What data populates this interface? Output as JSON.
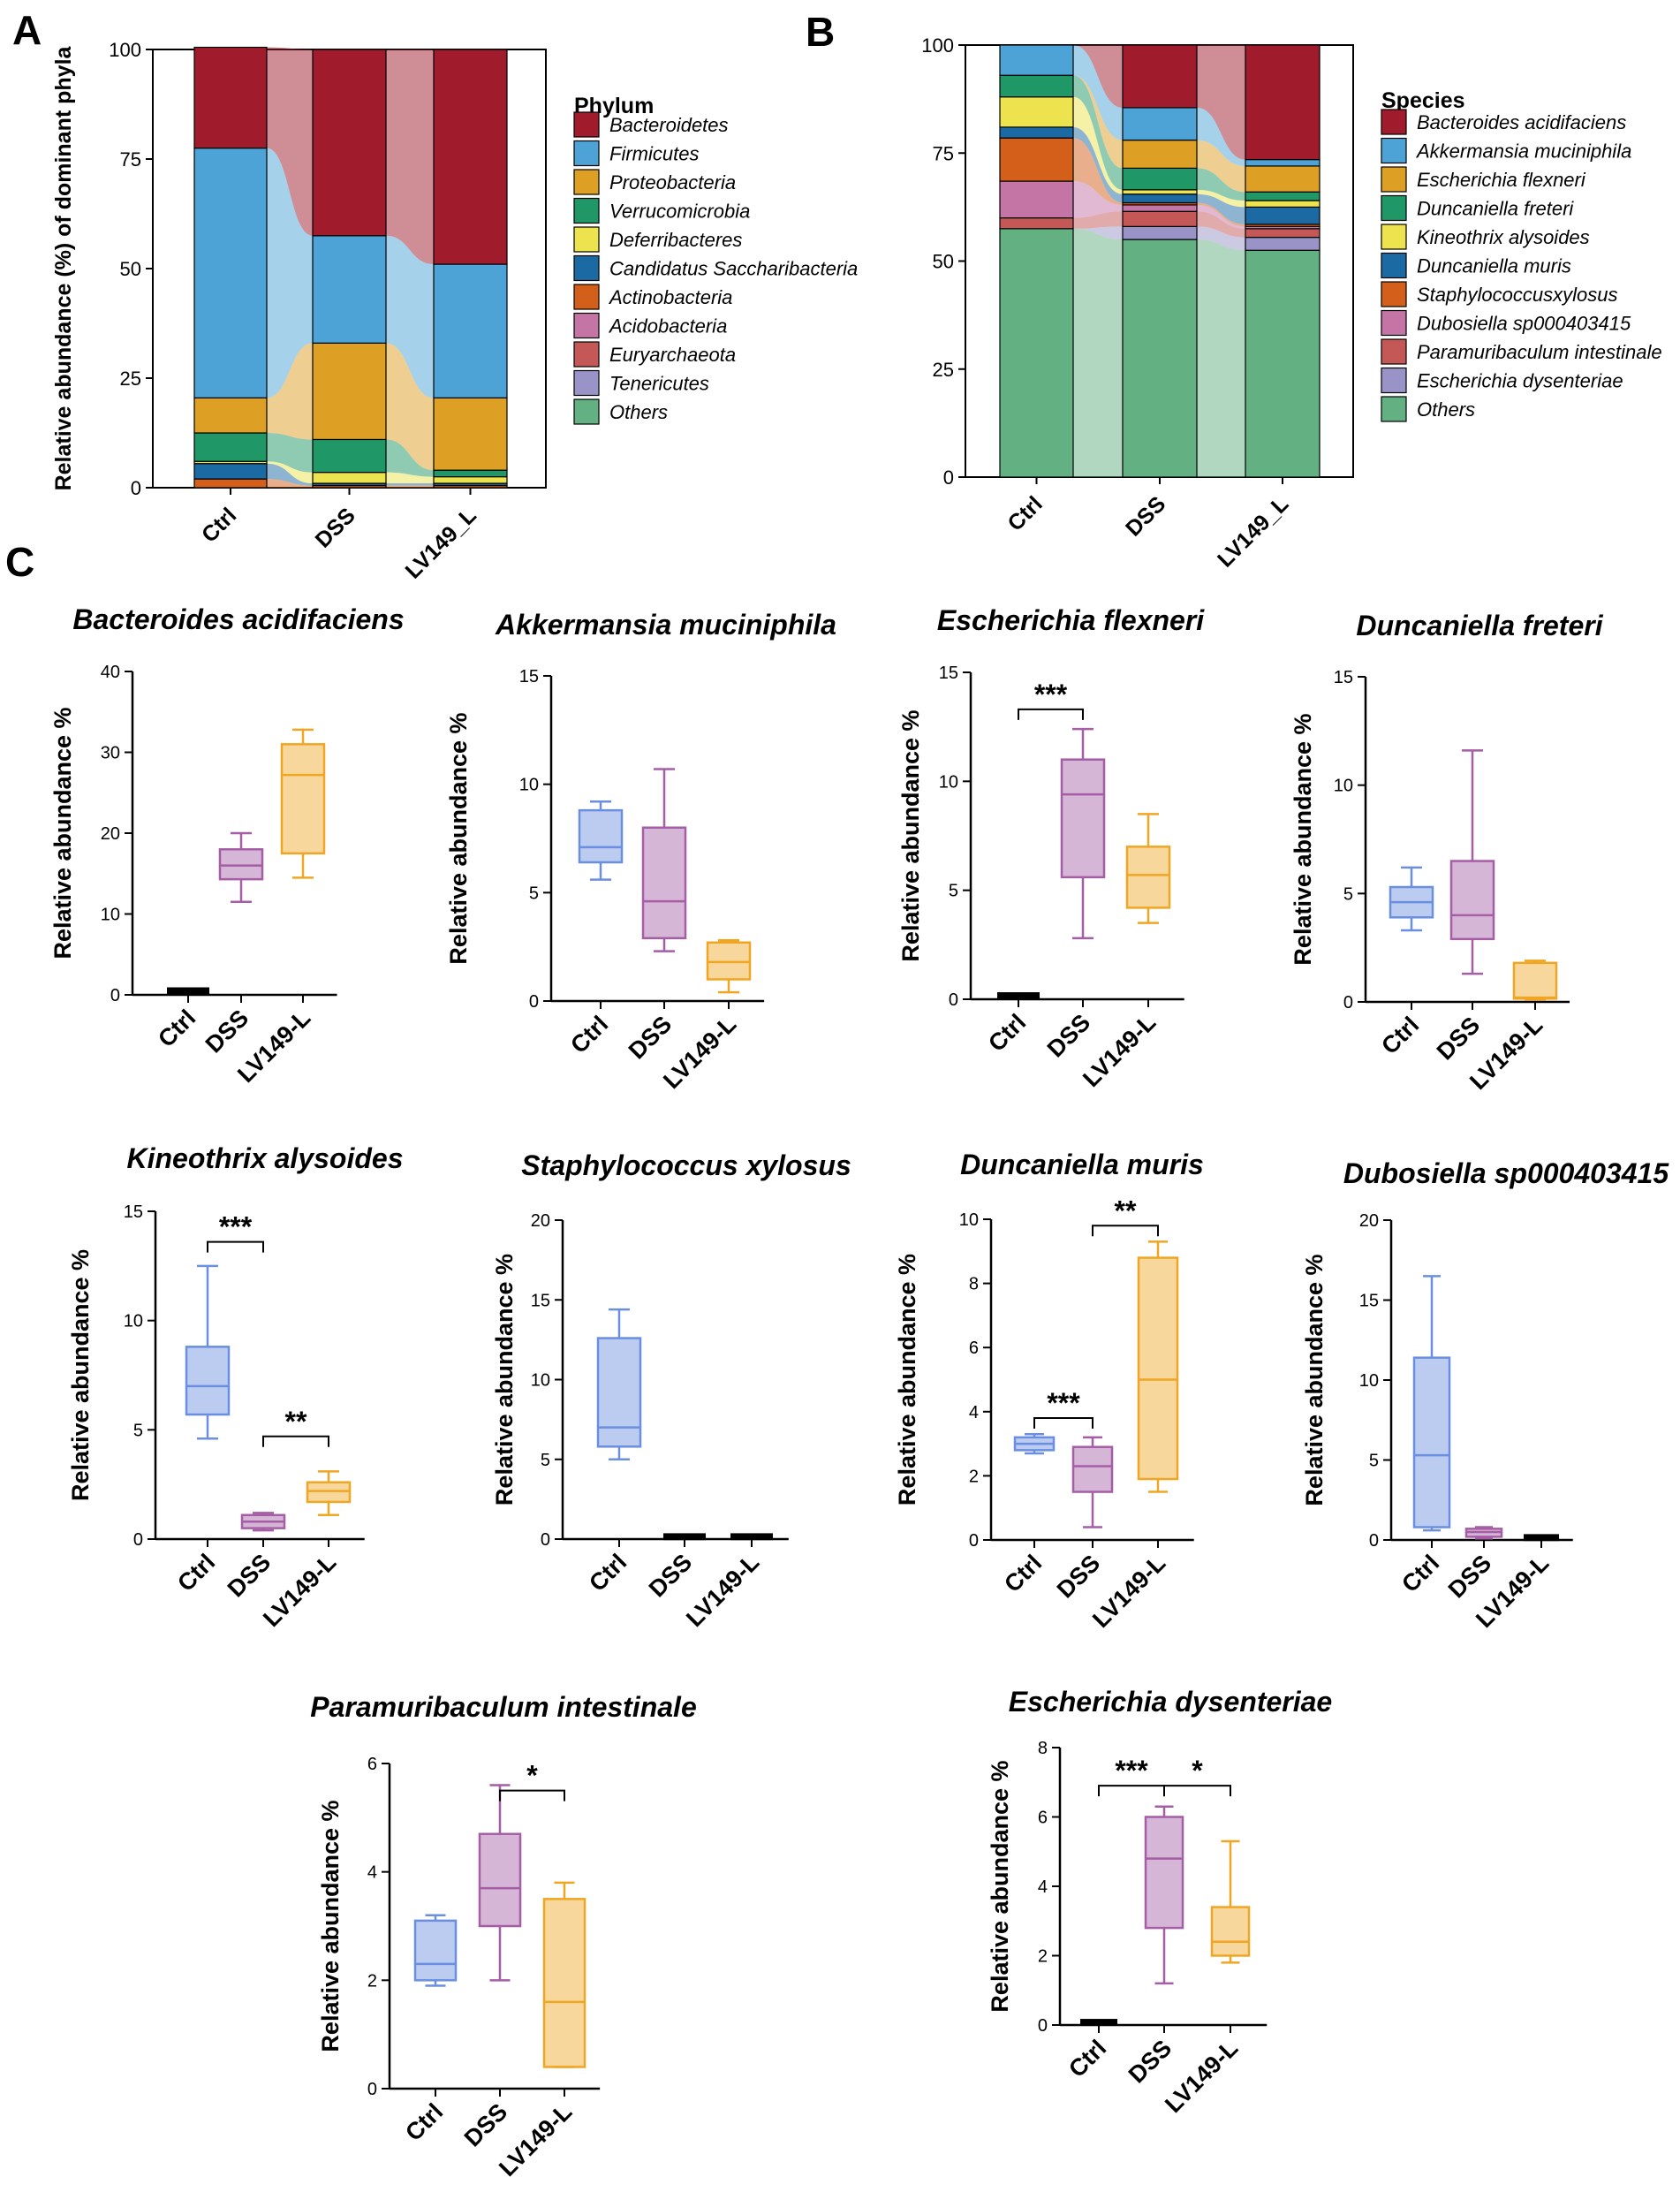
{
  "panel_letters": {
    "A": "A",
    "B": "B",
    "C": "C"
  },
  "colors": {
    "Bacteroidetes": "#a01c2c",
    "Firmicutes": "#4da3d6",
    "Proteobacteria": "#dea024",
    "Verrucomicrobia": "#1f9767",
    "Deferribacteres": "#ece34e",
    "Candidatus Saccharibacteria": "#1c6aa3",
    "Actinobacteria": "#d35f1b",
    "Acidobacteria": "#c574a6",
    "Euryarchaeota": "#c45857",
    "Tenericutes": "#9a93c8",
    "Others": "#63b083",
    "box_ctrl": "#6b8fe0",
    "box_dss": "#a55ea6",
    "box_lv": "#f0a623"
  },
  "chart_data": [
    {
      "id": "A",
      "type": "stacked-bar",
      "ylabel": "Relative abundance (%) of dominant phyla",
      "ylim": [
        0,
        100
      ],
      "yticks": [
        "0",
        "25",
        "50",
        "75",
        "100"
      ],
      "categories": [
        "Ctrl",
        "DSS",
        "LV149_L"
      ],
      "legend_title": "Phylum",
      "legend": [
        "Bacteroidetes",
        "Firmicutes",
        "Proteobacteria",
        "Verrucomicrobia",
        "Deferribacteres",
        "Candidatus Saccharibacteria",
        "Actinobacteria",
        "Acidobacteria",
        "Euryarchaeota",
        "Tenericutes",
        "Others"
      ],
      "series": [
        {
          "name": "Others",
          "color_key": "Others",
          "values": [
            0,
            0,
            0
          ]
        },
        {
          "name": "Tenericutes",
          "color_key": "Tenericutes",
          "values": [
            0,
            0,
            0
          ]
        },
        {
          "name": "Euryarchaeota",
          "color_key": "Euryarchaeota",
          "values": [
            0,
            0,
            0
          ]
        },
        {
          "name": "Acidobacteria",
          "color_key": "Acidobacteria",
          "values": [
            0,
            0,
            0
          ]
        },
        {
          "name": "Actinobacteria",
          "color_key": "Actinobacteria",
          "values": [
            2,
            0.5,
            0.5
          ]
        },
        {
          "name": "Candidatus Saccharibacteria",
          "color_key": "Candidatus Saccharibacteria",
          "values": [
            3.5,
            0.5,
            0.5
          ]
        },
        {
          "name": "Deferribacteres",
          "color_key": "Deferribacteres",
          "values": [
            0.5,
            2.5,
            1.5
          ]
        },
        {
          "name": "Verrucomicrobia",
          "color_key": "Verrucomicrobia",
          "values": [
            6.5,
            7.5,
            1.5
          ]
        },
        {
          "name": "Proteobacteria",
          "color_key": "Proteobacteria",
          "values": [
            8,
            22,
            16.5
          ]
        },
        {
          "name": "Firmicutes",
          "color_key": "Firmicutes",
          "values": [
            57,
            24.5,
            30.5
          ]
        },
        {
          "name": "Bacteroidetes",
          "color_key": "Bacteroidetes",
          "values": [
            23,
            42.5,
            49
          ]
        }
      ]
    },
    {
      "id": "B",
      "type": "stacked-bar",
      "ylabel": "",
      "ylim": [
        0,
        100
      ],
      "yticks": [
        "0",
        "25",
        "50",
        "75",
        "100"
      ],
      "categories": [
        "Ctrl",
        "DSS",
        "LV149_L"
      ],
      "legend_title": "Species",
      "legend": [
        "Bacteroides acidifaciens",
        "Akkermansia muciniphila",
        "Escherichia flexneri",
        "Duncaniella freteri",
        "Kineothrix alysoides",
        "Duncaniella muris",
        "Staphylococcusxylosus",
        "Dubosiella sp000403415",
        "Paramuribaculum intestinale",
        "Escherichia dysenteriae",
        "Others"
      ],
      "series": [
        {
          "name": "Others",
          "color_key": "Others",
          "values": [
            57.5,
            55,
            52.5
          ]
        },
        {
          "name": "Escherichia dysenteriae",
          "color_key": "Tenericutes",
          "values": [
            0,
            3,
            3
          ]
        },
        {
          "name": "Paramuribaculum intestinale",
          "color_key": "Euryarchaeota",
          "values": [
            2.5,
            3.5,
            2
          ]
        },
        {
          "name": "Dubosiella sp000403415",
          "color_key": "Acidobacteria",
          "values": [
            8.5,
            1.5,
            0.5
          ]
        },
        {
          "name": "Staphylococcusxylosus",
          "color_key": "Actinobacteria",
          "values": [
            10,
            0.5,
            0.5
          ]
        },
        {
          "name": "Duncaniella muris",
          "color_key": "Candidatus Saccharibacteria",
          "values": [
            2.5,
            2,
            4
          ]
        },
        {
          "name": "Kineothrix alysoides",
          "color_key": "Deferribacteres",
          "values": [
            7,
            1,
            1.5
          ]
        },
        {
          "name": "Duncaniella freteri",
          "color_key": "Verrucomicrobia",
          "values": [
            5,
            5,
            2
          ]
        },
        {
          "name": "Escherichia flexneri",
          "color_key": "Proteobacteria",
          "values": [
            0,
            6.5,
            6
          ]
        },
        {
          "name": "Akkermansia muciniphila",
          "color_key": "Firmicutes",
          "values": [
            7,
            7.5,
            1.5
          ]
        },
        {
          "name": "Bacteroides acidifaciens",
          "color_key": "Bacteroidetes",
          "values": [
            0,
            14.5,
            26.5
          ]
        }
      ]
    },
    {
      "id": "C1",
      "type": "box",
      "title": "Bacteroides acidifaciens",
      "ylabel": "Relative abundance %",
      "ymax": 40,
      "yticks": [
        "0",
        "10",
        "20",
        "30",
        "40"
      ],
      "categories": [
        "Ctrl",
        "DSS",
        "LV149-L"
      ],
      "boxes": [
        {
          "min": 0.3,
          "q1": 0.3,
          "median": 0.4,
          "q3": 0.6,
          "max": 0.6
        },
        {
          "min": 11.5,
          "q1": 14.3,
          "median": 16,
          "q3": 18,
          "max": 20
        },
        {
          "min": 14.5,
          "q1": 17.5,
          "median": 27.2,
          "q3": 31,
          "max": 32.8
        }
      ],
      "sig": []
    },
    {
      "id": "C2",
      "type": "box",
      "title": "Akkermansia muciniphila",
      "ylabel": "Relative abundance %",
      "ymax": 15,
      "yticks": [
        "0",
        "5",
        "10",
        "15"
      ],
      "categories": [
        "Ctrl",
        "DSS",
        "LV149-L"
      ],
      "boxes": [
        {
          "min": 5.6,
          "q1": 6.4,
          "median": 7.1,
          "q3": 8.8,
          "max": 9.2
        },
        {
          "min": 2.3,
          "q1": 2.9,
          "median": 4.6,
          "q3": 8,
          "max": 10.7
        },
        {
          "min": 0.4,
          "q1": 1,
          "median": 1.8,
          "q3": 2.7,
          "max": 2.8
        }
      ],
      "sig": []
    },
    {
      "id": "C3",
      "type": "box",
      "title": "Escherichia flexneri",
      "ylabel": "Relative abundance %",
      "ymax": 15,
      "yticks": [
        "0",
        "5",
        "10",
        "15"
      ],
      "categories": [
        "Ctrl",
        "DSS",
        "LV149-L"
      ],
      "boxes": [
        {
          "min": 0.1,
          "q1": 0.1,
          "median": 0.15,
          "q3": 0.2,
          "max": 0.2
        },
        {
          "min": 2.8,
          "q1": 5.6,
          "median": 9.4,
          "q3": 11,
          "max": 12.4
        },
        {
          "min": 3.5,
          "q1": 4.2,
          "median": 5.7,
          "q3": 7,
          "max": 8.5
        }
      ],
      "sig": [
        {
          "from": 0,
          "to": 1,
          "label": "***",
          "y": 13.3
        }
      ]
    },
    {
      "id": "C4",
      "type": "box",
      "title": "Duncaniella freteri",
      "ylabel": "Relative abundance %",
      "ymax": 15,
      "yticks": [
        "0",
        "5",
        "10",
        "15"
      ],
      "categories": [
        "Ctrl",
        "DSS",
        "LV149-L"
      ],
      "boxes": [
        {
          "min": 3.3,
          "q1": 3.9,
          "median": 4.6,
          "q3": 5.3,
          "max": 6.2
        },
        {
          "min": 1.3,
          "q1": 2.9,
          "median": 4,
          "q3": 6.5,
          "max": 11.6
        },
        {
          "min": 0.1,
          "q1": 0.15,
          "median": 0.2,
          "q3": 1.8,
          "max": 1.9
        }
      ],
      "sig": []
    },
    {
      "id": "C5",
      "type": "box",
      "title": "Kineothrix alysoides",
      "ylabel": "Relative abundance %",
      "ymax": 15,
      "yticks": [
        "0",
        "5",
        "10",
        "15"
      ],
      "categories": [
        "Ctrl",
        "DSS",
        "LV149-L"
      ],
      "boxes": [
        {
          "min": 4.6,
          "q1": 5.7,
          "median": 7,
          "q3": 8.8,
          "max": 12.5
        },
        {
          "min": 0.4,
          "q1": 0.5,
          "median": 0.8,
          "q3": 1.1,
          "max": 1.2
        },
        {
          "min": 1.1,
          "q1": 1.7,
          "median": 2.2,
          "q3": 2.6,
          "max": 3.1
        }
      ],
      "sig": [
        {
          "from": 0,
          "to": 1,
          "label": "***",
          "y": 13.6
        },
        {
          "from": 1,
          "to": 2,
          "label": "**",
          "y": 4.7
        }
      ]
    },
    {
      "id": "C6",
      "type": "box",
      "title": "Staphylococcus xylosus",
      "ylabel": "Relative abundance %",
      "ymax": 20,
      "yticks": [
        "0",
        "5",
        "10",
        "15",
        "20"
      ],
      "categories": [
        "Ctrl",
        "DSS",
        "LV149-L"
      ],
      "boxes": [
        {
          "min": 5,
          "q1": 5.8,
          "median": 7,
          "q3": 12.6,
          "max": 14.4
        },
        {
          "min": 0.1,
          "q1": 0.1,
          "median": 0.15,
          "q3": 0.2,
          "max": 0.2
        },
        {
          "min": 0.1,
          "q1": 0.1,
          "median": 0.15,
          "q3": 0.2,
          "max": 0.2
        }
      ],
      "sig": []
    },
    {
      "id": "C7",
      "type": "box",
      "title": "Duncaniella muris",
      "ylabel": "Relative abundance %",
      "ymax": 10,
      "yticks": [
        "0",
        "2",
        "4",
        "6",
        "8",
        "10"
      ],
      "categories": [
        "Ctrl",
        "DSS",
        "LV149-L"
      ],
      "boxes": [
        {
          "min": 2.7,
          "q1": 2.8,
          "median": 3,
          "q3": 3.2,
          "max": 3.3
        },
        {
          "min": 0.4,
          "q1": 1.5,
          "median": 2.3,
          "q3": 2.9,
          "max": 3.2
        },
        {
          "min": 1.5,
          "q1": 1.9,
          "median": 5,
          "q3": 8.8,
          "max": 9.3
        }
      ],
      "sig": [
        {
          "from": 0,
          "to": 1,
          "label": "***",
          "y": 3.8
        },
        {
          "from": 1,
          "to": 2,
          "label": "**",
          "y": 9.8
        }
      ]
    },
    {
      "id": "C8",
      "type": "box",
      "title": "Dubosiella sp000403415",
      "ylabel": "Relative abundance %",
      "ymax": 20,
      "yticks": [
        "0",
        "5",
        "10",
        "15",
        "20"
      ],
      "categories": [
        "Ctrl",
        "DSS",
        "LV149-L"
      ],
      "boxes": [
        {
          "min": 0.6,
          "q1": 0.8,
          "median": 5.3,
          "q3": 11.4,
          "max": 16.5
        },
        {
          "min": 0.1,
          "q1": 0.2,
          "median": 0.5,
          "q3": 0.7,
          "max": 0.8
        },
        {
          "min": 0.1,
          "q1": 0.1,
          "median": 0.15,
          "q3": 0.2,
          "max": 0.2
        }
      ],
      "sig": []
    },
    {
      "id": "C9",
      "type": "box",
      "title": "Paramuribaculum intestinale",
      "ylabel": "Relative abundance %",
      "ymax": 6,
      "yticks": [
        "0",
        "2",
        "4",
        "6"
      ],
      "categories": [
        "Ctrl",
        "DSS",
        "LV149-L"
      ],
      "boxes": [
        {
          "min": 1.9,
          "q1": 2,
          "median": 2.3,
          "q3": 3.1,
          "max": 3.2
        },
        {
          "min": 2,
          "q1": 3,
          "median": 3.7,
          "q3": 4.7,
          "max": 5.6
        },
        {
          "min": 0.4,
          "q1": 0.4,
          "median": 1.6,
          "q3": 3.5,
          "max": 3.8
        }
      ],
      "sig": [
        {
          "from": 1,
          "to": 2,
          "label": "*",
          "y": 5.5
        }
      ]
    },
    {
      "id": "C10",
      "type": "box",
      "title": "Escherichia dysenteriae",
      "ylabel": "Relative abundance %",
      "ymax": 8,
      "yticks": [
        "0",
        "2",
        "4",
        "6",
        "8"
      ],
      "categories": [
        "Ctrl",
        "DSS",
        "LV149-L"
      ],
      "boxes": [
        {
          "min": 0.05,
          "q1": 0.05,
          "median": 0.08,
          "q3": 0.1,
          "max": 0.1
        },
        {
          "min": 1.2,
          "q1": 2.8,
          "median": 4.8,
          "q3": 6,
          "max": 6.3
        },
        {
          "min": 1.8,
          "q1": 2,
          "median": 2.4,
          "q3": 3.4,
          "max": 5.3
        }
      ],
      "sig": [
        {
          "from": 0,
          "to": 1,
          "label": "***",
          "y": 6.9
        },
        {
          "from": 1,
          "to": 2,
          "label": "*",
          "y": 6.9
        }
      ]
    }
  ]
}
